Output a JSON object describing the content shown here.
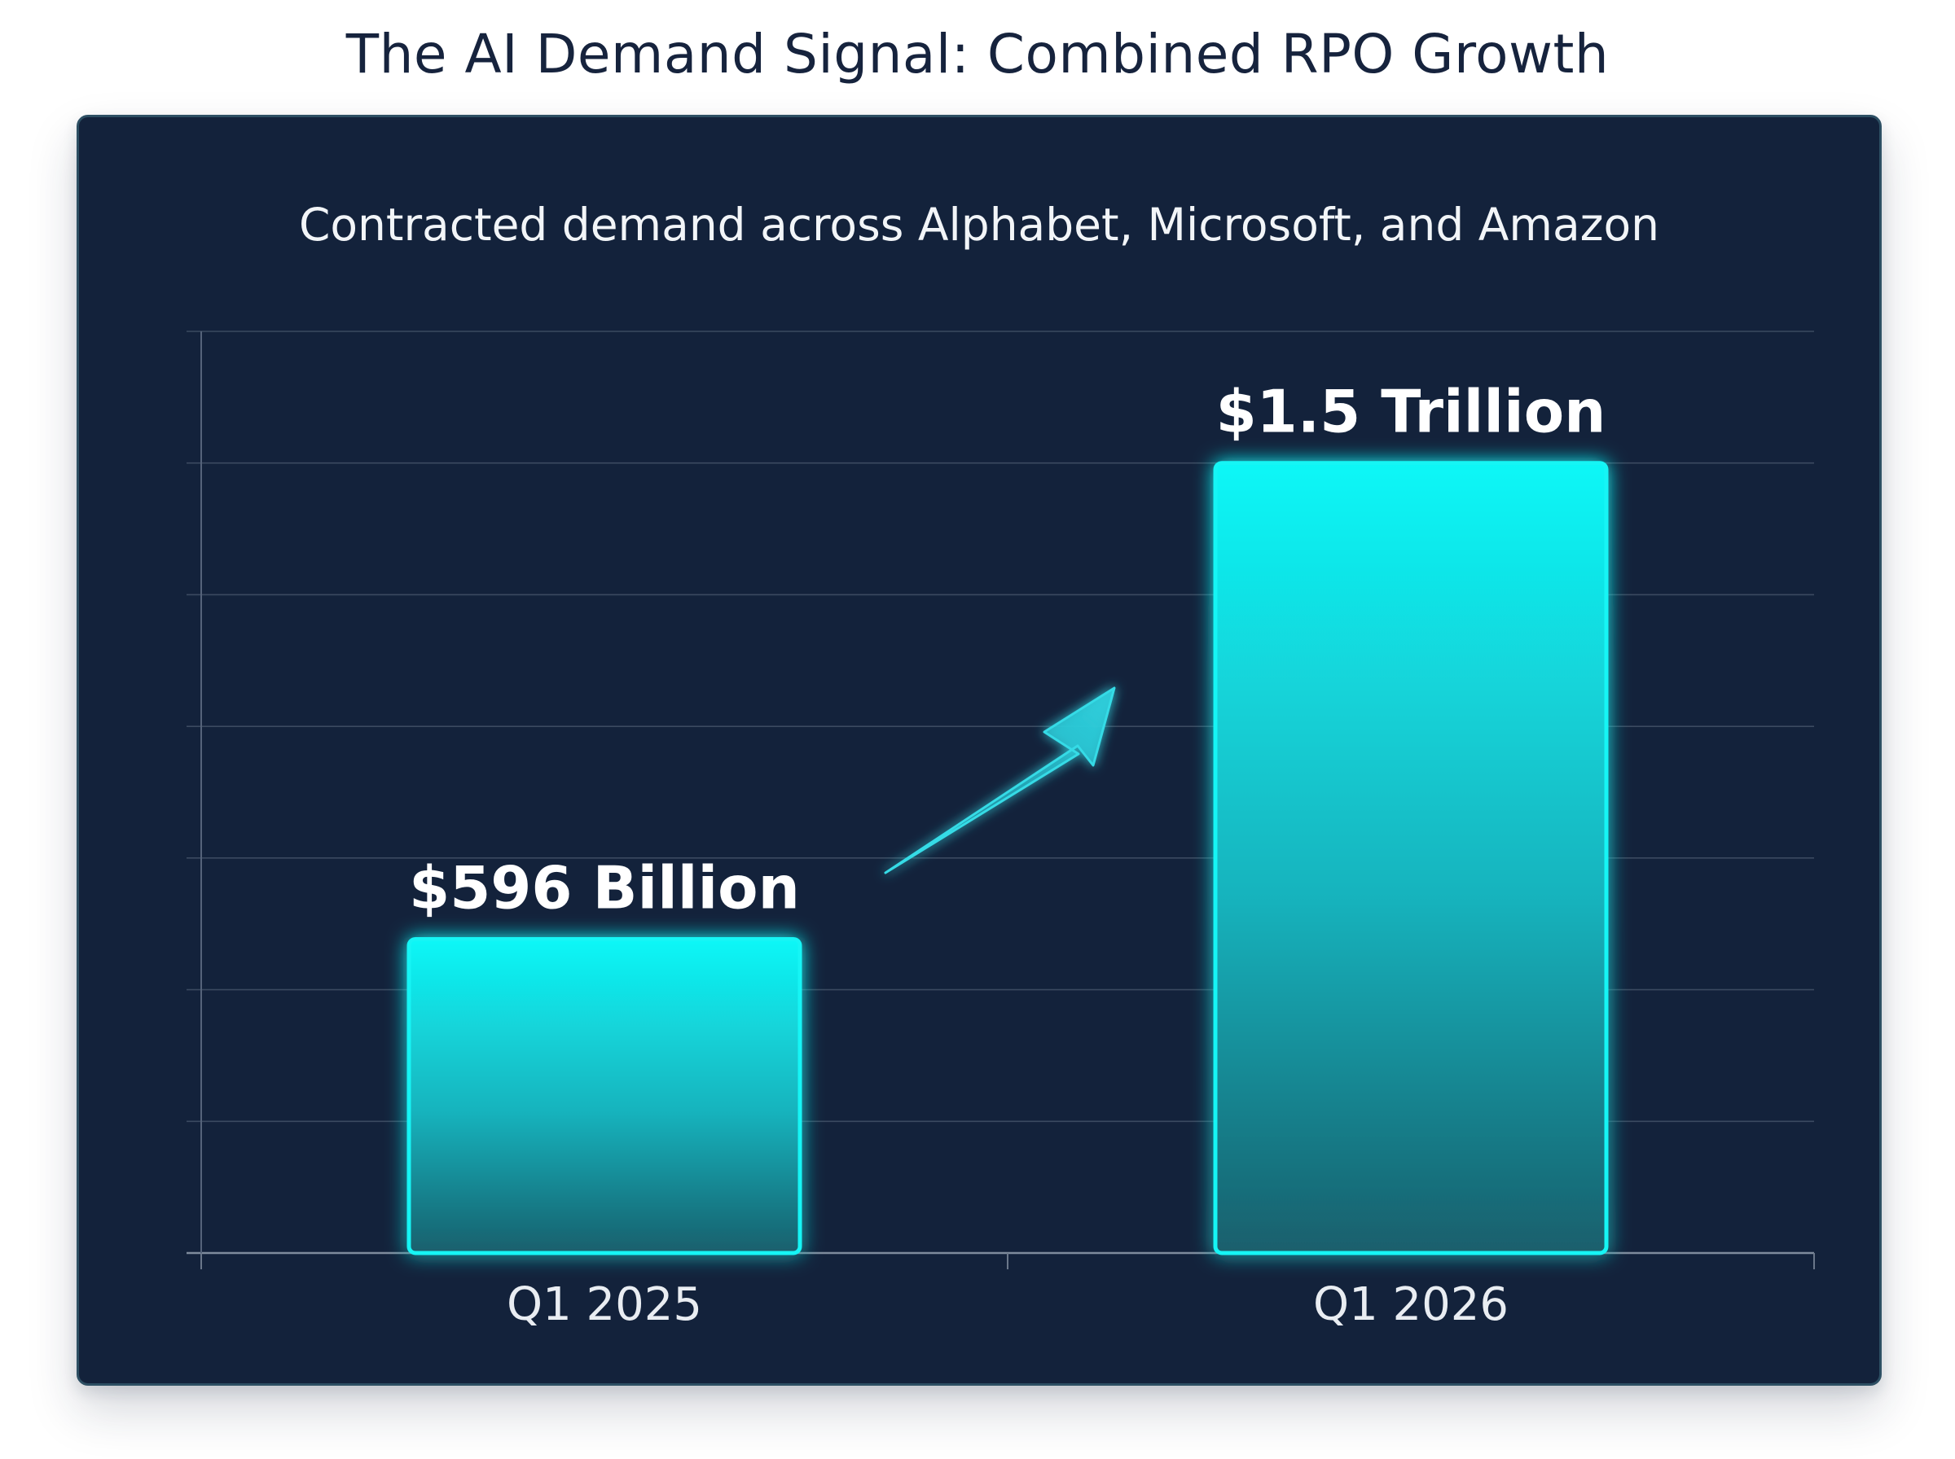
{
  "title": "The AI Demand Signal: Combined RPO Growth",
  "subtitle": "Contracted demand across Alphabet, Microsoft, and Amazon",
  "chart_data": {
    "type": "bar",
    "categories": [
      "Q1 2025",
      "Q1 2026"
    ],
    "values": [
      596,
      1500
    ],
    "value_unit": "billion USD",
    "data_labels": [
      "$596 Billion",
      "$1.5 Trillion"
    ],
    "title": "The AI Demand Signal: Combined RPO Growth",
    "subtitle": "Contracted demand across Alphabet, Microsoft, and Amazon",
    "xlabel": "",
    "ylabel": "",
    "ylim": [
      0,
      1750
    ],
    "grid": true,
    "legend": "none",
    "bar_color": "#12f5f5",
    "background_color": "#13223b",
    "annotation": "upward-arrow"
  }
}
